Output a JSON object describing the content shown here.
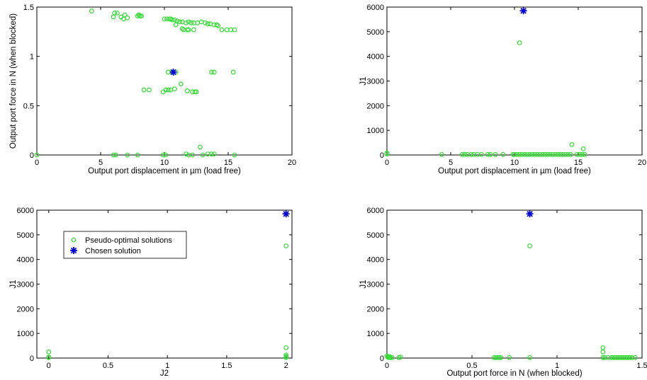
{
  "chart_data": [
    {
      "type": "scatter",
      "xlabel": "Output port displacement in µm (load free)",
      "ylabel": "Output port force in N (when blocked)",
      "xlim": [
        0,
        20
      ],
      "ylim": [
        0,
        1.5
      ],
      "xticks": [
        0,
        5,
        10,
        15,
        20
      ],
      "yticks": [
        0,
        0.5,
        1,
        1.5
      ],
      "grid": false,
      "series": [
        {
          "marker": "circle",
          "color": "#33dd33",
          "x": [
            0,
            4.3,
            6.0,
            6.1,
            6.3,
            6.6,
            6.8,
            6.9,
            7.1,
            7.9,
            8.0,
            8.1,
            8.2,
            10.0,
            10.2,
            10.4,
            10.5,
            10.6,
            10.8,
            11.0,
            11.2,
            11.4,
            11.7,
            11.9,
            12.1,
            12.3,
            12.6,
            12.9,
            13.2,
            13.4,
            13.6,
            13.9,
            14.1,
            14.2,
            14.5,
            14.9,
            15.2,
            15.5,
            11.4,
            11.5,
            11.8,
            11.9,
            12.3,
            10.9,
            10.3,
            10.6,
            10.9,
            13.7,
            13.9,
            15.4,
            8.4,
            8.8,
            9.9,
            10.1,
            10.3,
            10.5,
            10.8,
            11.3,
            11.8,
            12.2,
            12.4,
            12.5,
            6.0,
            6.2,
            7.1,
            7.9,
            9.9,
            10.1,
            11.7,
            11.9,
            12.2,
            12.8,
            13.0,
            13.4,
            13.7,
            13.9,
            15.5
          ],
          "y": [
            0,
            1.46,
            1.4,
            1.44,
            1.44,
            1.4,
            1.38,
            1.42,
            1.39,
            1.41,
            1.42,
            1.41,
            1.41,
            1.38,
            1.38,
            1.38,
            1.38,
            1.37,
            1.37,
            1.36,
            1.35,
            1.35,
            1.34,
            1.35,
            1.34,
            1.34,
            1.34,
            1.35,
            1.34,
            1.33,
            1.33,
            1.32,
            1.32,
            1.31,
            1.27,
            1.27,
            1.27,
            1.27,
            1.28,
            1.27,
            1.27,
            1.27,
            1.27,
            1.32,
            0.84,
            0.84,
            0.84,
            0.84,
            0.84,
            0.84,
            0.66,
            0.66,
            0.64,
            0.66,
            0.66,
            0.66,
            0.67,
            0.72,
            0.65,
            0.64,
            0.64,
            0.64,
            0,
            0,
            0,
            0,
            0,
            0,
            0.01,
            0,
            0,
            0.08,
            0,
            0.01,
            0.01,
            0.01,
            0
          ]
        },
        {
          "marker": "star",
          "color": "#0000cc",
          "x": [
            10.7
          ],
          "y": [
            0.84
          ]
        }
      ]
    },
    {
      "type": "scatter",
      "xlabel": "Output port displacement in µm (load free)",
      "ylabel": "J1",
      "xlim": [
        0,
        20
      ],
      "ylim": [
        0,
        6000
      ],
      "xticks": [
        0,
        5,
        10,
        15,
        20
      ],
      "yticks": [
        0,
        1000,
        2000,
        3000,
        4000,
        5000,
        6000
      ],
      "grid": false,
      "series": [
        {
          "marker": "circle",
          "color": "#33dd33",
          "x": [
            0,
            0,
            4.3,
            5.9,
            6.1,
            6.3,
            6.6,
            6.8,
            7.1,
            7.4,
            7.9,
            8.1,
            8.5,
            9.1,
            9.9,
            10.0,
            10.2,
            10.4,
            10.6,
            10.8,
            11.0,
            11.2,
            11.4,
            11.6,
            11.8,
            12.0,
            12.2,
            12.4,
            12.6,
            12.8,
            13.0,
            13.2,
            13.4,
            13.6,
            13.8,
            14.0,
            14.2,
            14.4,
            14.9,
            15.1,
            15.3,
            15.5,
            14.5,
            15.4,
            10.4
          ],
          "y": [
            40,
            80,
            20,
            20,
            20,
            20,
            20,
            20,
            20,
            20,
            20,
            20,
            20,
            20,
            20,
            20,
            20,
            20,
            20,
            20,
            20,
            20,
            20,
            20,
            20,
            20,
            20,
            20,
            20,
            20,
            20,
            20,
            20,
            20,
            20,
            20,
            20,
            20,
            20,
            20,
            20,
            20,
            420,
            250,
            4550
          ]
        },
        {
          "marker": "star",
          "color": "#0000cc",
          "x": [
            10.7
          ],
          "y": [
            5850
          ]
        }
      ]
    },
    {
      "type": "scatter",
      "xlabel": "J2",
      "ylabel": "J1",
      "xlim": [
        -0.1,
        2.05
      ],
      "ylim": [
        0,
        6000
      ],
      "xticks": [
        0,
        0.5,
        1,
        1.5,
        2
      ],
      "yticks": [
        0,
        1000,
        2000,
        3000,
        4000,
        5000,
        6000
      ],
      "grid": false,
      "legend": {
        "placement": "upper-left",
        "entries": [
          "Pseudo-optimal solutions",
          "Chosen solution"
        ]
      },
      "series": [
        {
          "name": "Pseudo-optimal solutions",
          "marker": "circle",
          "color": "#33dd33",
          "x": [
            0,
            0,
            0,
            2,
            2,
            2,
            2,
            2
          ],
          "y": [
            20,
            40,
            250,
            20,
            60,
            120,
            420,
            4550
          ]
        },
        {
          "name": "Chosen solution",
          "marker": "star",
          "color": "#0000cc",
          "x": [
            2
          ],
          "y": [
            5850
          ]
        }
      ]
    },
    {
      "type": "scatter",
      "xlabel": "Output port force in N (when blocked)",
      "ylabel": "J1",
      "xlim": [
        0,
        1.5
      ],
      "ylim": [
        0,
        6000
      ],
      "xticks": [
        0,
        0.5,
        1,
        1.5
      ],
      "yticks": [
        0,
        1000,
        2000,
        3000,
        4000,
        5000,
        6000
      ],
      "grid": false,
      "series": [
        {
          "marker": "circle",
          "color": "#33dd33",
          "x": [
            0,
            0.005,
            0.01,
            0.015,
            0.02,
            0.03,
            0.07,
            0.08,
            0.63,
            0.64,
            0.65,
            0.66,
            0.67,
            0.72,
            0.84,
            1.27,
            1.28,
            1.3,
            1.32,
            1.33,
            1.34,
            1.35,
            1.36,
            1.37,
            1.38,
            1.39,
            1.4,
            1.41,
            1.42,
            1.43,
            1.44,
            1.46,
            1.27,
            1.27,
            0.84
          ],
          "y": [
            80,
            40,
            20,
            60,
            20,
            20,
            20,
            40,
            20,
            20,
            20,
            20,
            20,
            20,
            20,
            20,
            20,
            20,
            20,
            20,
            20,
            20,
            20,
            20,
            20,
            20,
            20,
            20,
            20,
            20,
            20,
            20,
            250,
            420,
            4550
          ]
        },
        {
          "marker": "star",
          "color": "#0000cc",
          "x": [
            0.84
          ],
          "y": [
            5850
          ]
        }
      ]
    }
  ]
}
